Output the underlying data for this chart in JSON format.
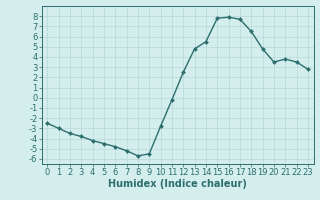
{
  "x": [
    0,
    1,
    2,
    3,
    4,
    5,
    6,
    7,
    8,
    9,
    10,
    11,
    12,
    13,
    14,
    15,
    16,
    17,
    18,
    19,
    20,
    21,
    22,
    23
  ],
  "y": [
    -2.5,
    -3.0,
    -3.5,
    -3.8,
    -4.2,
    -4.5,
    -4.8,
    -5.2,
    -5.7,
    -5.5,
    -2.8,
    -0.2,
    2.5,
    4.8,
    5.5,
    7.8,
    7.9,
    7.7,
    6.5,
    4.8,
    3.5,
    3.8,
    3.5,
    2.8
  ],
  "line_color": "#2d6e6e",
  "marker": "D",
  "marker_size": 2,
  "bg_color": "#d4eeee",
  "grid_color": "#b8d8d8",
  "xlabel": "Humidex (Indice chaleur)",
  "ylim": [
    -6.5,
    9.0
  ],
  "xlim": [
    -0.5,
    23.5
  ],
  "yticks": [
    -6,
    -5,
    -4,
    -3,
    -2,
    -1,
    0,
    1,
    2,
    3,
    4,
    5,
    6,
    7,
    8
  ],
  "xticks": [
    0,
    1,
    2,
    3,
    4,
    5,
    6,
    7,
    8,
    9,
    10,
    11,
    12,
    13,
    14,
    15,
    16,
    17,
    18,
    19,
    20,
    21,
    22,
    23
  ],
  "xlabel_fontsize": 7,
  "tick_fontsize": 6,
  "line_width": 1.0
}
